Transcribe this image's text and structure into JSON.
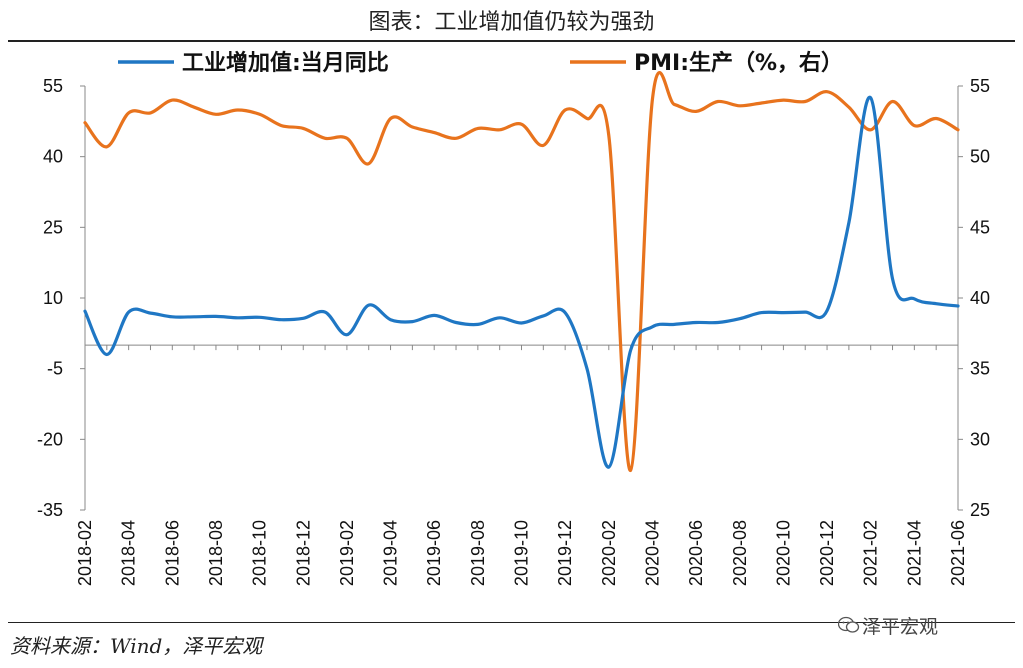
{
  "title": "图表：工业增加值仍较为强劲",
  "source": "资料来源：Wind，泽平宏观",
  "watermark": "泽平宏观",
  "chart_data": {
    "type": "line",
    "title": "图表：工业增加值仍较为强劲",
    "x": [
      "2018-02",
      "2018-03",
      "2018-04",
      "2018-05",
      "2018-06",
      "2018-07",
      "2018-08",
      "2018-09",
      "2018-10",
      "2018-11",
      "2018-12",
      "2019-01",
      "2019-02",
      "2019-03",
      "2019-04",
      "2019-05",
      "2019-06",
      "2019-07",
      "2019-08",
      "2019-09",
      "2019-10",
      "2019-11",
      "2019-12",
      "2020-01",
      "2020-02",
      "2020-03",
      "2020-04",
      "2020-05",
      "2020-06",
      "2020-07",
      "2020-08",
      "2020-09",
      "2020-10",
      "2020-11",
      "2020-12",
      "2021-01",
      "2021-02",
      "2021-03",
      "2021-04",
      "2021-05",
      "2021-06"
    ],
    "x_tick_labels": [
      "2018-02",
      "2018-04",
      "2018-06",
      "2018-08",
      "2018-10",
      "2018-12",
      "2019-02",
      "2019-04",
      "2019-06",
      "2019-08",
      "2019-10",
      "2019-12",
      "2020-02",
      "2020-04",
      "2020-06",
      "2020-08",
      "2020-10",
      "2020-12",
      "2021-02",
      "2021-04",
      "2021-06"
    ],
    "left_axis": {
      "ylim": [
        -35,
        55
      ],
      "ticks": [
        55,
        40,
        25,
        10,
        -5,
        -20,
        -35
      ]
    },
    "right_axis": {
      "ylim": [
        25,
        55
      ],
      "ticks": [
        55,
        50,
        45,
        40,
        35,
        30,
        25
      ]
    },
    "series": [
      {
        "name": "工业增加值:当月同比",
        "axis": "left",
        "color": "#1f77c4",
        "values": [
          7.2,
          -2.0,
          7.0,
          6.8,
          6.0,
          6.0,
          6.1,
          5.8,
          5.9,
          5.4,
          5.7,
          7.0,
          2.2,
          8.5,
          5.4,
          5.0,
          6.3,
          4.8,
          4.4,
          5.8,
          4.7,
          6.2,
          6.9,
          -5.0,
          -25.9,
          -1.1,
          3.9,
          4.4,
          4.8,
          4.8,
          5.6,
          6.9,
          6.9,
          7.0,
          7.3,
          26.0,
          52.5,
          14.1,
          9.8,
          8.8,
          8.3
        ]
      },
      {
        "name": "PMI:生产（%，右）",
        "axis": "right",
        "color": "#e8731d",
        "values": [
          52.4,
          50.7,
          53.1,
          53.1,
          54.0,
          53.5,
          53.0,
          53.3,
          53.0,
          52.2,
          52.0,
          51.3,
          51.3,
          49.5,
          52.7,
          52.1,
          51.7,
          51.3,
          52.0,
          51.9,
          52.3,
          50.8,
          53.3,
          52.7,
          51.5,
          27.8,
          54.1,
          53.7,
          53.2,
          53.9,
          53.6,
          53.8,
          54.0,
          53.9,
          54.6,
          53.5,
          51.9,
          53.9,
          52.2,
          52.7,
          51.9
        ]
      }
    ],
    "legend_position": "top",
    "grid": false
  }
}
